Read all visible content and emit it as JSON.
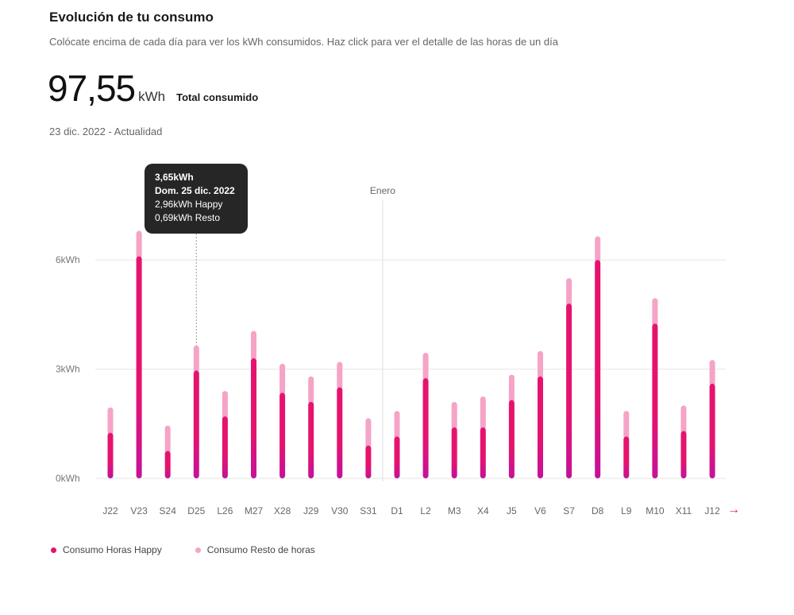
{
  "header": {
    "title": "Evolución de tu consumo",
    "subtitle": "Colócate encima de cada día para ver los kWh consumidos. Haz click para ver el detalle de las horas de un día",
    "total_value": "97,55",
    "total_unit": "kWh",
    "total_label": "Total consumido",
    "period": "23 dic. 2022 - Actualidad"
  },
  "tooltip": {
    "total": "3,65kWh",
    "date": "Dom. 25 dic. 2022",
    "happy": "2,96kWh Happy",
    "rest": "0,69kWh Resto"
  },
  "legend": {
    "happy": "Consumo Horas Happy",
    "rest": "Consumo Resto de horas"
  },
  "nav": {
    "next_arrow": "→"
  },
  "colors": {
    "happy": "#e6136e",
    "happy_base": "#c4129a",
    "rest": "#f5a3c7",
    "accent": "#e6136e"
  },
  "chart_data": {
    "type": "bar",
    "stacked": true,
    "categories": [
      "J22",
      "V23",
      "S24",
      "D25",
      "L26",
      "M27",
      "X28",
      "J29",
      "V30",
      "S31",
      "D1",
      "L2",
      "M3",
      "X4",
      "J5",
      "V6",
      "S7",
      "D8",
      "L9",
      "M10",
      "X11",
      "J12"
    ],
    "series": [
      {
        "name": "Consumo Horas Happy",
        "values": [
          1.25,
          6.1,
          0.75,
          2.96,
          1.7,
          3.3,
          2.35,
          2.1,
          2.5,
          0.9,
          1.15,
          2.75,
          1.4,
          1.4,
          2.15,
          2.8,
          4.8,
          6.0,
          1.15,
          4.25,
          1.3,
          2.6
        ]
      },
      {
        "name": "Consumo Resto de horas",
        "values": [
          0.7,
          0.7,
          0.7,
          0.69,
          0.7,
          0.75,
          0.8,
          0.7,
          0.7,
          0.75,
          0.7,
          0.7,
          0.7,
          0.85,
          0.7,
          0.7,
          0.7,
          0.65,
          0.7,
          0.7,
          0.7,
          0.65
        ]
      }
    ],
    "y_ticks": [
      0,
      3,
      6
    ],
    "y_tick_labels": [
      "0kWh",
      "3kWh",
      "6kWh"
    ],
    "ylim": [
      0,
      6.8
    ],
    "annotations": [
      {
        "label": "Enero",
        "between": [
          "S31",
          "D1"
        ]
      }
    ],
    "highlighted": "D25",
    "grid": true,
    "legend_position": "bottom-left"
  }
}
